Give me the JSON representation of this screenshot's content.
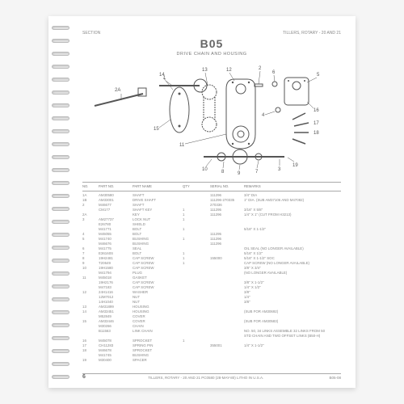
{
  "header": {
    "left": "SECTION",
    "right": "TILLERS, ROTARY - 20 AND 21"
  },
  "title": "B05",
  "subtitle": "DRIVE CHAIN AND HOUSING",
  "diagram": {
    "callouts": [
      "2A",
      "14",
      "15",
      "1",
      "13",
      "12",
      "2",
      "6",
      "11",
      "4",
      "10",
      "8",
      "9",
      "7",
      "3",
      "19",
      "18",
      "17",
      "16",
      "5"
    ]
  },
  "table": {
    "headers": [
      "NO.",
      "PART NO.",
      "PART NAME",
      "QTY",
      "SERIAL NO.",
      "REMARKS"
    ],
    "rows": [
      [
        "1A",
        "AM30580",
        "SHAFT",
        "",
        "111296",
        "3/4\" DIA"
      ],
      [
        "1B",
        "AM33001",
        "DRIVE SHAFT",
        "",
        "111296-270335",
        "1\" DIA. (SUB AM37106 AND M47082)"
      ],
      [
        "2",
        "M46677",
        "SHAFT",
        "",
        "270336",
        ""
      ],
      [
        "",
        "CM177",
        "SHAFT KEY",
        "1",
        "111295",
        "3/16\" X 5/8\""
      ],
      [
        "2A",
        "",
        "KEY",
        "1",
        "111296",
        "1/4\" X 1\" (CUT FROM H3213)"
      ],
      [
        "3",
        "AM27737",
        "LOCK NUT",
        "1",
        "",
        ""
      ],
      [
        "",
        "E26780",
        "SHIELD",
        "",
        "",
        ""
      ],
      [
        "",
        "M41771",
        "BOLT",
        "1",
        "",
        "5/16\" X 1-1/2\""
      ],
      [
        "4",
        "M45055",
        "BOLT",
        "",
        "111295",
        ""
      ],
      [
        "5",
        "M41740",
        "BUSHING",
        "1",
        "111296",
        ""
      ],
      [
        "",
        "M46676",
        "BUSHING",
        "",
        "111296",
        ""
      ],
      [
        "6",
        "M41775",
        "SEAL",
        "",
        "",
        "OIL SEAL (NO LONGER AVAILABLE)"
      ],
      [
        "7",
        "E36160S",
        "BOLT",
        "1",
        "",
        "5/16\" X 1/2\""
      ],
      [
        "8",
        "19H2481",
        "CAP SCREW",
        "1",
        "155000",
        "5/16\" X 1-1/2\" SOC"
      ],
      [
        "9",
        "T20649",
        "CAP SCREW",
        "1",
        "",
        "CAP SCREW (NO LONGER AVAILABLE)"
      ],
      [
        "10",
        "19H1580",
        "CAP SCREW",
        "",
        "",
        "3/8\" X 3/4\""
      ],
      [
        "",
        "M41794",
        "PLUG",
        "",
        "",
        "(NO LONGER AVAILABLE)"
      ],
      [
        "11",
        "M45018",
        "GASKET",
        "",
        "",
        ""
      ],
      [
        "",
        "19H2176",
        "CAP SCREW",
        "",
        "",
        "3/8\" X 1-1/2\""
      ],
      [
        "",
        "M47183",
        "CAP SCREW",
        "",
        "",
        "1/4\" X 1/2\""
      ],
      [
        "12",
        "24H1416",
        "WASHER",
        "",
        "",
        "3/8\""
      ],
      [
        "",
        "12M7012",
        "NUT",
        "",
        "",
        "1/4\""
      ],
      [
        "",
        "14H1040",
        "NUT",
        "",
        "",
        "3/8\""
      ],
      [
        "13",
        "AM31899",
        "HOUSING",
        "",
        "",
        ""
      ],
      [
        "14",
        "AM33451",
        "HOUSING",
        "",
        "",
        "(SUB FOR AM30692)"
      ],
      [
        "",
        "M52849",
        "COVER",
        "",
        "",
        ""
      ],
      [
        "15",
        "AM33446",
        "COVER",
        "",
        "",
        "(SUB FOR AM30583)"
      ],
      [
        "",
        "M30266",
        "CHAIN",
        "",
        "",
        ""
      ],
      [
        "",
        "B11563",
        "LINK CHAIN",
        "",
        "",
        "NO. 50, 34 LINKS ASSEMBLE 32 LINKS FROM 50"
      ],
      [
        "",
        "",
        "",
        "",
        "",
        "STD CHAIN AND TWO OFFSET LINKS (B50-H)"
      ],
      [
        "16",
        "M45078",
        "SPROCKET",
        "1",
        "",
        ""
      ],
      [
        "17",
        "CH11283",
        "SPRING PIN",
        "",
        "355001",
        "1/4\" X 1-1/2\""
      ],
      [
        "18",
        "M46678",
        "SPROCKET",
        "",
        "",
        ""
      ],
      [
        "",
        "M41745",
        "BUSHING",
        "",
        "",
        ""
      ],
      [
        "19",
        "M30400",
        "SPACER",
        "",
        "",
        ""
      ]
    ]
  },
  "footer": {
    "page": "6",
    "center": "TILLERS, ROTARY - 20 AND 21   PC0580   (28-MAY-80)   LITHO IN U.S.A.",
    "right": "B05-08"
  }
}
